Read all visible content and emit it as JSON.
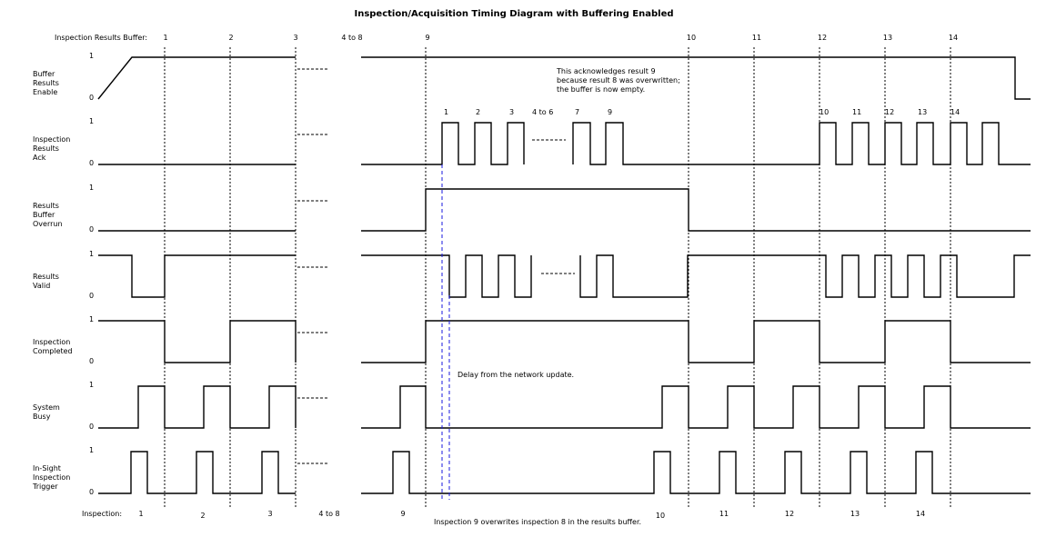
{
  "title": "Inspection/Acquisition Timing Diagram with Buffering Enabled",
  "buffer_label": "Inspection Results Buffer:",
  "buffer_markers": [
    "1",
    "2",
    "3",
    "4 to 8",
    "9",
    "10",
    "11",
    "12",
    "13",
    "14"
  ],
  "inspection_label": "Inspection:",
  "inspection_markers": [
    "1",
    "2",
    "3",
    "4 to 8",
    "9",
    "10",
    "11",
    "12",
    "13",
    "14"
  ],
  "ack_pulse_labels": [
    "1",
    "2",
    "3",
    "4 to 6",
    "7",
    "9",
    "10",
    "11",
    "12",
    "13",
    "14"
  ],
  "level_high": "1",
  "level_low": "0",
  "signals": [
    {
      "name": [
        "Buffer",
        "Results",
        "Enable"
      ]
    },
    {
      "name": [
        "Inspection",
        "Results",
        "Ack"
      ]
    },
    {
      "name": [
        "Results",
        "Buffer",
        "Overrun"
      ]
    },
    {
      "name": [
        "Results",
        "Valid"
      ]
    },
    {
      "name": [
        "Inspection",
        "Completed"
      ]
    },
    {
      "name": [
        "System",
        "Busy"
      ]
    },
    {
      "name": [
        "In-Sight",
        "Inspection",
        "Trigger"
      ]
    }
  ],
  "annotations": {
    "ack_note": [
      "This acknowledges result 9",
      "because result 8 was overwritten;",
      "the buffer is now empty."
    ],
    "delay_note": "Delay from the network update.",
    "overwrite_note": "Inspection 9 overwrites inspection 8 in the results buffer."
  },
  "colors": {
    "signal": "#000000",
    "delay_marker": "#1a1adf"
  }
}
